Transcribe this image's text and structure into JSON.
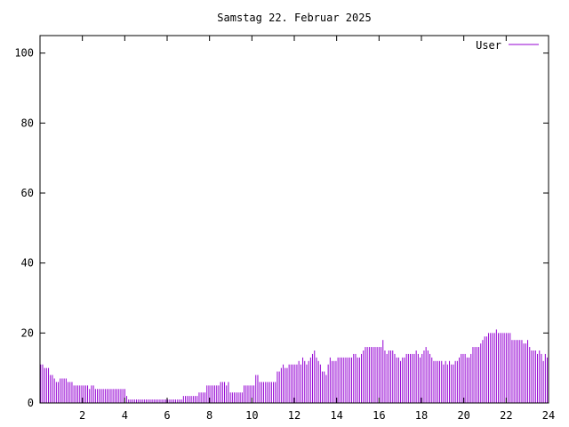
{
  "chart_data": {
    "type": "bar",
    "title": "Samstag 22. Februar 2025",
    "xlabel": "",
    "ylabel": "",
    "xlim": [
      0,
      24
    ],
    "ylim": [
      0,
      105
    ],
    "x_ticks": [
      2,
      4,
      6,
      8,
      10,
      12,
      14,
      16,
      18,
      20,
      22,
      24
    ],
    "y_ticks": [
      0,
      20,
      40,
      60,
      80,
      100
    ],
    "grid": false,
    "legend": "top-right",
    "series": [
      {
        "name": "User",
        "color": "#9400d3",
        "values": [
          11,
          11,
          10,
          10,
          10,
          8,
          8,
          7,
          6,
          6,
          7,
          7,
          7,
          7,
          6,
          6,
          6,
          5,
          5,
          5,
          5,
          5,
          5,
          5,
          5,
          4,
          5,
          5,
          4,
          4,
          4,
          4,
          4,
          4,
          4,
          4,
          4,
          4,
          4,
          4,
          4,
          4,
          4,
          4,
          2,
          1,
          1,
          1,
          1,
          1,
          1,
          1,
          1,
          1,
          1,
          1,
          1,
          1,
          1,
          1,
          1,
          1,
          1,
          1,
          1,
          1,
          1,
          1,
          1,
          1,
          1,
          1,
          1,
          2,
          2,
          2,
          2,
          2,
          2,
          2,
          2,
          3,
          3,
          3,
          3,
          5,
          5,
          5,
          5,
          5,
          5,
          5,
          6,
          6,
          6,
          5,
          6,
          3,
          3,
          3,
          3,
          3,
          3,
          3,
          5,
          5,
          5,
          5,
          5,
          5,
          8,
          8,
          6,
          6,
          6,
          6,
          6,
          6,
          6,
          6,
          6,
          9,
          9,
          10,
          11,
          10,
          10,
          11,
          11,
          11,
          11,
          11,
          12,
          11,
          13,
          12,
          11,
          12,
          13,
          14,
          15,
          13,
          12,
          11,
          9,
          9,
          8,
          11,
          13,
          12,
          12,
          12,
          13,
          13,
          13,
          13,
          13,
          13,
          13,
          13,
          14,
          14,
          13,
          13,
          14,
          15,
          16,
          16,
          16,
          16,
          16,
          16,
          16,
          16,
          16,
          18,
          15,
          14,
          15,
          15,
          15,
          14,
          13,
          13,
          12,
          13,
          13,
          14,
          14,
          14,
          14,
          14,
          15,
          14,
          13,
          14,
          15,
          16,
          15,
          14,
          13,
          12,
          12,
          12,
          12,
          12,
          11,
          12,
          11,
          12,
          11,
          11,
          12,
          12,
          13,
          14,
          14,
          14,
          13,
          13,
          14,
          16,
          16,
          16,
          16,
          17,
          18,
          19,
          19,
          20,
          20,
          20,
          20,
          21,
          20,
          20,
          20,
          20,
          20,
          20,
          20,
          18,
          18,
          18,
          18,
          18,
          18,
          17,
          17,
          18,
          16,
          15,
          15,
          15,
          14,
          15,
          14,
          12,
          14,
          13
        ]
      }
    ]
  }
}
